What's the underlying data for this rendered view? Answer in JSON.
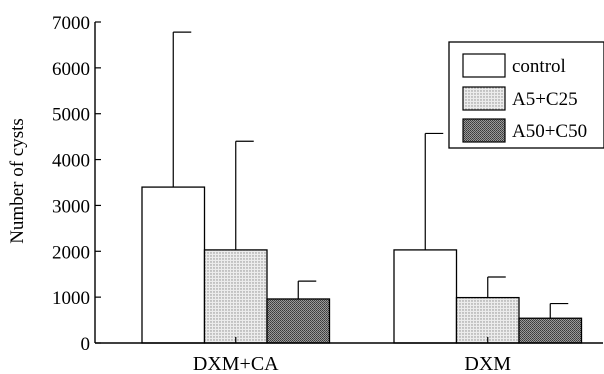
{
  "chart_data": {
    "type": "bar",
    "categories": [
      "DXM+CA",
      "DXM"
    ],
    "series": [
      {
        "name": "control",
        "values": [
          3400,
          2030
        ],
        "errors": [
          3380,
          2540
        ],
        "pattern": "white"
      },
      {
        "name": "A5+C25",
        "values": [
          2030,
          990
        ],
        "errors": [
          2370,
          450
        ],
        "pattern": "light-dots"
      },
      {
        "name": "A50+C50",
        "values": [
          960,
          540
        ],
        "errors": [
          390,
          320
        ],
        "pattern": "dark-dots"
      }
    ],
    "ylabel": "Number of cysts",
    "xlabel": "",
    "ylim": [
      0,
      7000
    ],
    "yticks": [
      0,
      1000,
      2000,
      3000,
      4000,
      5000,
      6000,
      7000
    ],
    "grid": false,
    "legend": "top-right",
    "error_bars": "upper-only"
  }
}
